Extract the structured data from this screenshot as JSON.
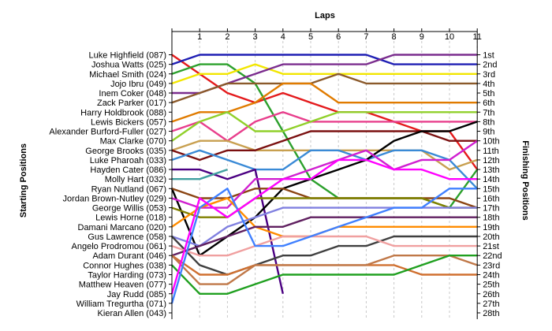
{
  "chart_data": {
    "type": "line",
    "title": "",
    "xlabel": "Laps",
    "ylabel_left": "Starting Positions",
    "ylabel_right": "Finishing Positions",
    "x": [
      0,
      1,
      2,
      3,
      4,
      5,
      6,
      7,
      8,
      9,
      10,
      11
    ],
    "x_tick_labels": [
      "1",
      "2",
      "3",
      "4",
      "5",
      "6",
      "7",
      "8",
      "9",
      "10",
      "11"
    ],
    "y_range": [
      1,
      28
    ],
    "y_inverted": true,
    "grid": "vertical",
    "legend": "none",
    "starting_labels": [
      "Luke Highfield (087)",
      "Joshua Watts (025)",
      "Michael Smith (024)",
      "Jojo Ibru (049)",
      "Inem Coker (048)",
      "Zack Parker (017)",
      "Harry Holdbrook (088)",
      "Lewis Bickers (057)",
      "Alexander Burford-Fuller (027)",
      "Max Clarke (070)",
      "George Brooks (035)",
      "Luke Pharoah (033)",
      "Hayden Cater (086)",
      "Molly Hart (032)",
      "Ryan Nutland (067)",
      "Jordan Brown-Nutley (029)",
      "George Willis (053)",
      "Lewis Horne (018)",
      "Damani Marcano (020)",
      "Gus Lawrence (058)",
      "Angelo Prodromou (061)",
      "Adam Durant (046)",
      "Connor Hughes (038)",
      "Taylor Harding (073)",
      "Matthew Heaven (077)",
      "Jay Rudd (085)",
      "William Tregurtha (071)",
      "Kieran Allen (043)"
    ],
    "finishing_labels": [
      "1st",
      "2nd",
      "3rd",
      "4th",
      "5th",
      "6th",
      "7th",
      "8th",
      "9th",
      "10th",
      "11th",
      "12th",
      "13th",
      "14th",
      "15th",
      "16th",
      "17th",
      "18th",
      "19th",
      "20th",
      "21st",
      "22nd",
      "23rd",
      "24th",
      "25th",
      "26th",
      "27th",
      "28th"
    ],
    "series": [
      {
        "color": "#e41a1c",
        "positions": [
          1,
          3,
          5,
          6,
          5,
          6,
          7,
          7,
          8,
          9,
          9,
          13
        ]
      },
      {
        "color": "#1f1fb4",
        "positions": [
          2,
          1,
          1,
          1,
          1,
          1,
          1,
          1,
          2,
          2,
          2,
          2
        ]
      },
      {
        "color": "#2ca02c",
        "positions": [
          3,
          2,
          2,
          4,
          9,
          14,
          16,
          16,
          16,
          16,
          17,
          13
        ]
      },
      {
        "color": "#f2e600",
        "positions": [
          4,
          3,
          3,
          2,
          3,
          3,
          3,
          3,
          3,
          3,
          3,
          3
        ]
      },
      {
        "color": "#7b2d8e",
        "positions": [
          5,
          5,
          4,
          3,
          2,
          2,
          2,
          2,
          1,
          1,
          1,
          1
        ]
      },
      {
        "color": "#8b5a2b",
        "positions": [
          6,
          5,
          4,
          4,
          4,
          4,
          3,
          4,
          4,
          4,
          4,
          4
        ]
      },
      {
        "color": "#e07b00",
        "positions": [
          8,
          7,
          7,
          6,
          4,
          4,
          6,
          6,
          6,
          6,
          6,
          6
        ]
      },
      {
        "color": "#e83e8c",
        "positions": [
          9,
          8,
          10,
          8,
          7,
          8,
          8,
          8,
          8,
          8,
          8,
          8
        ]
      },
      {
        "color": "#90d02a",
        "positions": [
          10,
          8,
          7,
          9,
          9,
          8,
          7,
          7,
          7,
          7,
          7,
          7
        ]
      },
      {
        "color": "#c8a050",
        "positions": [
          11,
          10,
          10,
          11,
          11,
          11,
          11,
          11,
          11,
          11,
          13,
          12
        ]
      },
      {
        "color": "#7b1010",
        "positions": [
          11,
          12,
          11,
          11,
          10,
          9,
          9,
          9,
          9,
          9,
          10,
          10
        ]
      },
      {
        "color": "#3a8ad6",
        "positions": [
          12,
          11,
          12,
          13,
          13,
          11,
          11,
          12,
          11,
          11,
          12,
          15
        ]
      },
      {
        "color": "#4b0082",
        "positions": [
          13,
          13,
          14,
          13,
          26
        ]
      },
      {
        "color": "#40a0a0",
        "positions": [
          14,
          14,
          13
        ]
      },
      {
        "color": "#000000",
        "positions": [
          15,
          22,
          20,
          18,
          15,
          14,
          13,
          12,
          10,
          9,
          9,
          8
        ]
      },
      {
        "color": "#8b4513",
        "positions": [
          15,
          16,
          16,
          15,
          15,
          16,
          16,
          16,
          16,
          16,
          16,
          17
        ]
      },
      {
        "color": "#d020d0",
        "positions": [
          16,
          17,
          17,
          14,
          14,
          13,
          12,
          11,
          13,
          12,
          12,
          10
        ]
      },
      {
        "color": "#808000",
        "positions": [
          17,
          18,
          18,
          16,
          16,
          16,
          16,
          16,
          16,
          16,
          17,
          17
        ]
      },
      {
        "color": "#ff8c00",
        "positions": [
          19,
          17,
          16,
          19,
          20,
          20,
          19,
          19,
          19,
          19,
          19,
          19
        ]
      },
      {
        "color": "#8080e0",
        "positions": [
          20,
          21,
          19,
          18,
          17,
          17,
          17,
          17,
          17,
          17,
          17,
          17
        ]
      },
      {
        "color": "#404040",
        "positions": [
          20,
          23,
          24,
          23,
          22,
          22,
          21,
          21,
          20,
          20,
          20,
          20
        ]
      },
      {
        "color": "#f0a0a0",
        "positions": [
          21,
          22,
          22,
          21,
          20,
          20,
          20,
          20,
          21,
          21,
          21,
          21
        ]
      },
      {
        "color": "#602060",
        "positions": [
          22,
          21,
          20,
          19,
          19,
          18,
          18,
          18,
          18,
          18,
          18,
          18
        ]
      },
      {
        "color": "#d07030",
        "positions": [
          22,
          24,
          24,
          23,
          23,
          23,
          23,
          23,
          23,
          24,
          24,
          24
        ]
      },
      {
        "color": "#c07848",
        "positions": [
          22,
          25,
          25,
          23,
          23,
          23,
          23,
          23,
          22,
          22,
          22,
          23
        ]
      },
      {
        "color": "#20a020",
        "positions": [
          23,
          26,
          26,
          25,
          24,
          24,
          24,
          24,
          24,
          23,
          22,
          22
        ]
      },
      {
        "color": "#4080ff",
        "positions": [
          27,
          17,
          15,
          21,
          21,
          20,
          19,
          18,
          17,
          17,
          15,
          15
        ]
      },
      {
        "color": "#ff00ff",
        "positions": [
          26,
          16,
          18,
          16,
          14,
          14,
          12,
          12,
          13,
          13,
          14,
          14
        ]
      }
    ]
  }
}
